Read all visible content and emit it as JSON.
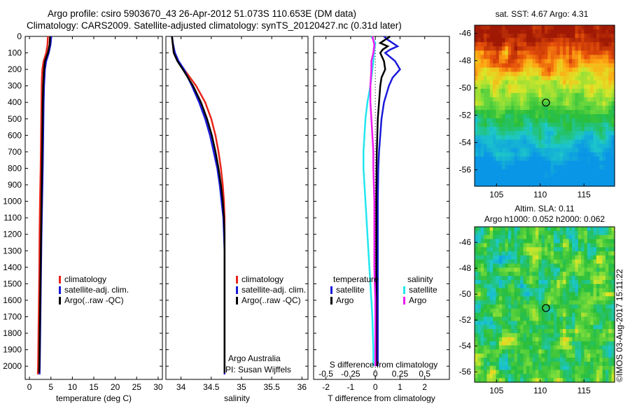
{
  "header": {
    "line1": "Argo profile: csiro 5903670_43 26-Apr-2012 51.073S 110.653E (DM data)",
    "line2": "Climatology: CARS2009. Satellite-adjusted climatology: synTS_20120427.nc (0.31d later)"
  },
  "colors": {
    "climatology": "#e8251b",
    "satellite": "#1a1adb",
    "argo": "#000000",
    "sal_satellite": "#22e6ef",
    "sal_argo": "#ef19ef"
  },
  "chart_data": [
    {
      "type": "line",
      "xlabel": "temperature (deg C)",
      "ylabel": "",
      "xlim": [
        -1,
        31
      ],
      "ylim": [
        2080,
        0
      ],
      "xticks": [
        "0",
        "5",
        "10",
        "15",
        "20",
        "25",
        "30"
      ],
      "yticks": [
        "0",
        "100",
        "200",
        "300",
        "400",
        "500",
        "600",
        "700",
        "800",
        "900",
        "1000",
        "1100",
        "1200",
        "1300",
        "1400",
        "1500",
        "1600",
        "1700",
        "1800",
        "1900",
        "2000"
      ],
      "legend": [
        "climatology",
        "satellite-adj. clim.",
        "Argo(..raw -QC)"
      ],
      "series": [
        {
          "name": "climatology",
          "y": [
            0,
            50,
            100,
            150,
            200,
            250,
            300,
            400,
            600,
            800,
            1000,
            1200,
            1400,
            1600,
            1800,
            2000,
            2050
          ],
          "x": [
            4.3,
            4.2,
            3.9,
            3.3,
            3.0,
            2.9,
            2.85,
            2.8,
            2.7,
            2.6,
            2.45,
            2.35,
            2.3,
            2.2,
            2.1,
            2.0,
            1.95
          ]
        },
        {
          "name": "satellite-adj. clim.",
          "y": [
            0,
            50,
            100,
            150,
            200,
            250,
            300,
            400,
            600,
            800,
            1000,
            1200,
            1400,
            1600,
            1800,
            2000,
            2050
          ],
          "x": [
            5.1,
            4.9,
            4.5,
            3.9,
            3.6,
            3.5,
            3.4,
            3.3,
            3.2,
            3.1,
            2.95,
            2.8,
            2.7,
            2.6,
            2.5,
            2.4,
            2.35
          ]
        },
        {
          "name": "Argo(..raw -QC)",
          "y": [
            0,
            50,
            100,
            150,
            200,
            250,
            300,
            400,
            600,
            800,
            1000,
            1200,
            1400,
            1600,
            1800,
            2000,
            2040
          ],
          "x": [
            4.8,
            4.7,
            4.3,
            3.6,
            3.4,
            3.3,
            3.2,
            3.1,
            3.0,
            2.9,
            2.8,
            2.7,
            2.6,
            2.5,
            2.4,
            2.3,
            2.25
          ]
        }
      ]
    },
    {
      "type": "line",
      "xlabel": "salinity",
      "xlim": [
        33.75,
        36.1
      ],
      "ylim": [
        2080,
        0
      ],
      "xticks": [
        "34",
        "34.5",
        "35",
        "35.5",
        "36"
      ],
      "legend": [
        "climatology",
        "satellite-adj. clim.",
        "Argo(..raw -QC)"
      ],
      "annotation": [
        "Argo Australia",
        "PI: Susan Wijffels"
      ],
      "series": [
        {
          "name": "climatology",
          "y": [
            0,
            100,
            150,
            200,
            300,
            400,
            500,
            600,
            700,
            800,
            900,
            1000,
            1100,
            1200,
            1300,
            1400,
            1500,
            1700,
            1900,
            2050
          ],
          "x": [
            33.85,
            33.88,
            33.95,
            34.05,
            34.25,
            34.4,
            34.5,
            34.57,
            34.62,
            34.66,
            34.69,
            34.71,
            34.72,
            34.72,
            34.72,
            34.72,
            34.72,
            34.72,
            34.72,
            34.72
          ]
        },
        {
          "name": "satellite-adj. clim.",
          "y": [
            0,
            50,
            100,
            150,
            200,
            300,
            400,
            500,
            600,
            700,
            800,
            900,
            1000,
            1100,
            1200,
            1300,
            1400,
            1500,
            1700,
            1900,
            2050
          ],
          "x": [
            33.85,
            33.87,
            33.9,
            33.96,
            34.05,
            34.18,
            34.3,
            34.4,
            34.48,
            34.54,
            34.6,
            34.64,
            34.67,
            34.7,
            34.71,
            34.72,
            34.72,
            34.72,
            34.72,
            34.72,
            34.72
          ]
        },
        {
          "name": "Argo(..raw -QC)",
          "y": [
            0,
            100,
            150,
            200,
            300,
            400,
            500,
            600,
            700,
            800,
            900,
            1000,
            1100,
            1200,
            1300,
            1400,
            1500,
            1700,
            1900,
            2040
          ],
          "x": [
            33.85,
            33.88,
            33.94,
            34.03,
            34.2,
            34.33,
            34.43,
            34.51,
            34.57,
            34.62,
            34.66,
            34.69,
            34.71,
            34.72,
            34.72,
            34.72,
            34.72,
            34.72,
            34.72,
            34.72
          ]
        }
      ]
    },
    {
      "type": "line",
      "xlabel": "T difference from climatology",
      "xlabel_top": "S difference from climatology",
      "xlim": [
        -2.5,
        3.0
      ],
      "ylim": [
        2080,
        0
      ],
      "xticks": [
        "-2",
        "-1",
        "0",
        "1",
        "2"
      ],
      "xticks_top": [
        "-0.5",
        "-0.25",
        "0",
        "0.25",
        "0.5"
      ],
      "legend": {
        "temperature": [
          "satellite",
          "Argo"
        ],
        "salinity": [
          "satellite",
          "Argo"
        ],
        "titles": [
          "temperature",
          "salinity"
        ]
      },
      "series": [
        {
          "name": "temperature satellite",
          "y": [
            0,
            20,
            40,
            60,
            80,
            100,
            150,
            200,
            250,
            300,
            400,
            500,
            600,
            700,
            800,
            1000,
            1200,
            1500,
            1800,
            2000
          ],
          "x": [
            0.35,
            0.5,
            0.7,
            0.9,
            0.6,
            0.4,
            0.8,
            1.0,
            0.7,
            0.55,
            0.35,
            0.25,
            0.2,
            0.15,
            0.12,
            0.1,
            0.1,
            0.1,
            0.1,
            0.1
          ]
        },
        {
          "name": "temperature Argo",
          "y": [
            0,
            20,
            40,
            60,
            80,
            100,
            150,
            200,
            250,
            300,
            400,
            500,
            600,
            700,
            800,
            1000,
            1200,
            1500,
            1800,
            2000
          ],
          "x": [
            0.6,
            0.4,
            0.2,
            0.5,
            0.3,
            0.2,
            0.35,
            0.4,
            0.25,
            0.2,
            0.15,
            0.1,
            0.08,
            0.06,
            0.05,
            0.04,
            0.04,
            0.04,
            0.04,
            0.04
          ]
        },
        {
          "name": "salinity satellite",
          "y": [
            0,
            20,
            40,
            80,
            150,
            200,
            300,
            400,
            500,
            600,
            700,
            800,
            900,
            1000,
            1100,
            1200,
            1300,
            1400,
            1500,
            1700,
            1900,
            2000
          ],
          "x": [
            -0.04,
            -0.02,
            0.0,
            -0.01,
            -0.02,
            -0.03,
            -0.05,
            -0.08,
            -0.1,
            -0.11,
            -0.12,
            -0.12,
            -0.11,
            -0.1,
            -0.09,
            -0.08,
            -0.07,
            -0.06,
            -0.05,
            -0.03,
            -0.02,
            -0.02
          ]
        },
        {
          "name": "salinity Argo",
          "y": [
            0,
            50,
            100,
            150,
            200,
            300,
            400,
            500,
            600,
            700,
            800,
            1000,
            1200,
            1400,
            1600,
            1800,
            2000
          ],
          "x": [
            -0.03,
            -0.01,
            -0.02,
            -0.04,
            -0.04,
            -0.05,
            -0.05,
            -0.04,
            -0.03,
            -0.02,
            -0.02,
            -0.01,
            -0.01,
            -0.01,
            0.0,
            0.0,
            0.0
          ]
        }
      ]
    },
    {
      "type": "heatmap",
      "title": "sat. SST: 4.67  Argo: 4.31",
      "xlim": [
        102.5,
        118.5
      ],
      "ylim": [
        -57.2,
        -45.4
      ],
      "xticks": [
        "105",
        "110",
        "115"
      ],
      "yticks": [
        "-46",
        "-48",
        "-50",
        "-52",
        "-54",
        "-56"
      ],
      "marker": {
        "lon": 110.653,
        "lat": -51.073
      }
    },
    {
      "type": "heatmap",
      "title": [
        "Altim. SLA: 0.11",
        "Argo h1000: 0.052 h2000: 0.062"
      ],
      "xlim": [
        102.5,
        118.5
      ],
      "ylim": [
        -56.8,
        -44.8
      ],
      "xticks": [
        "105",
        "110",
        "115"
      ],
      "yticks": [
        "-46",
        "-48",
        "-50",
        "-52",
        "-54",
        "-56"
      ],
      "marker": {
        "lon": 110.653,
        "lat": -51.073
      }
    }
  ],
  "footer": {
    "stamp": "©IMOS 03-Aug-2017 15:11:22"
  }
}
